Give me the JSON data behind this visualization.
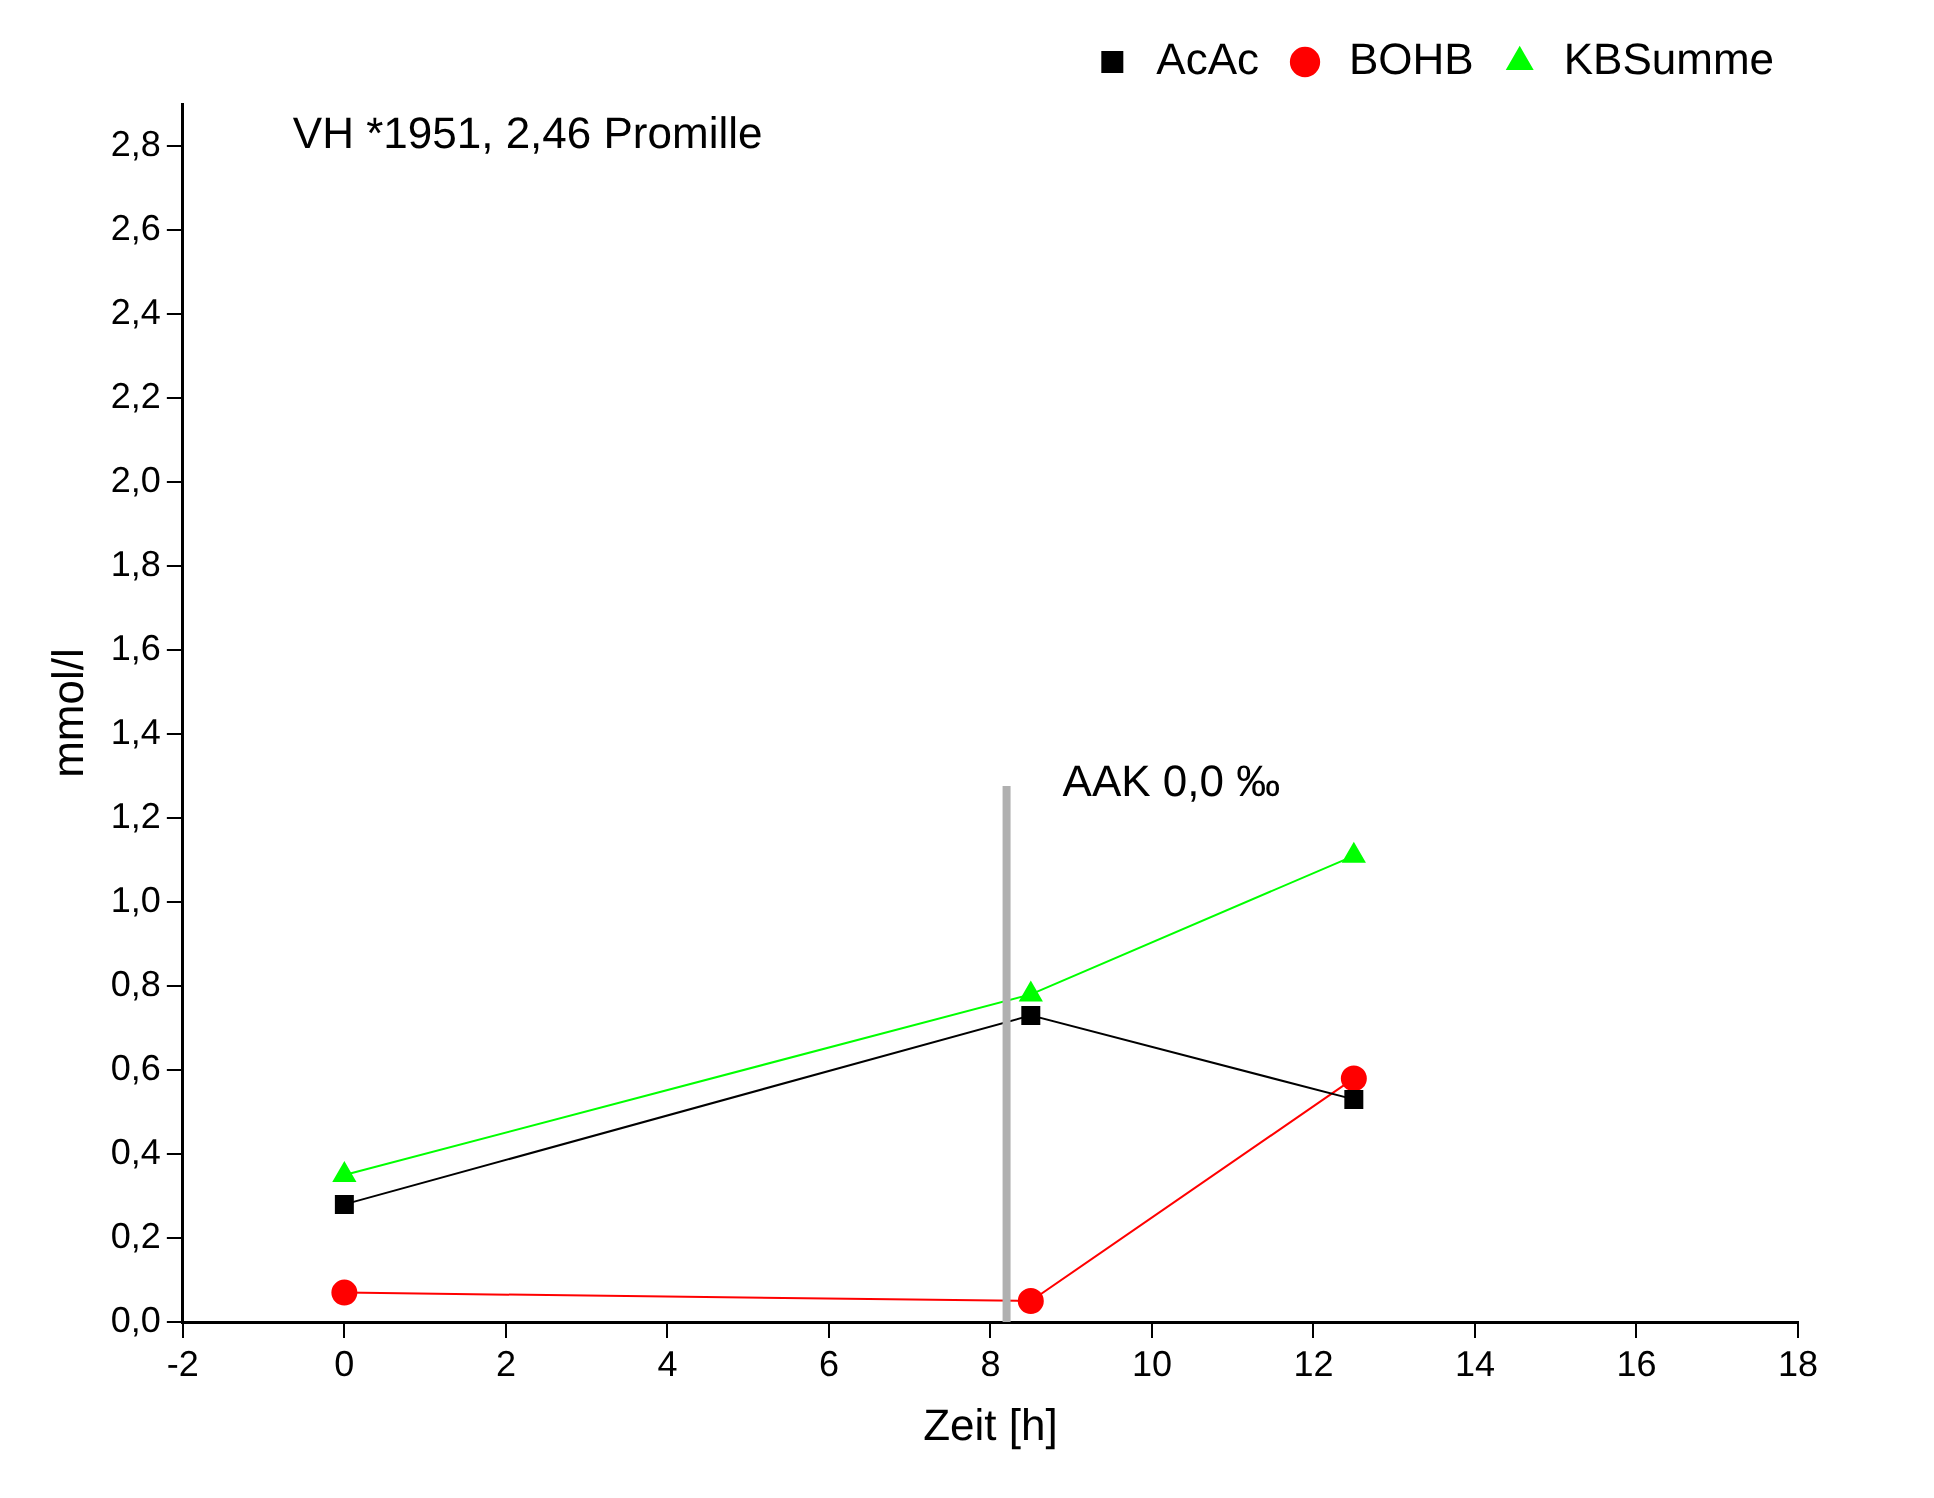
{
  "chart_data": {
    "type": "line",
    "xlabel": "Zeit [h]",
    "ylabel": "mmol/l",
    "annotations": [
      "VH *1951, 2,46 Promille"
    ],
    "series": [
      {
        "name": "AcAc",
        "color": "#000000",
        "marker": "square",
        "x": [
          0,
          8.5,
          12.5
        ],
        "values": [
          0.28,
          0.73,
          0.53
        ]
      },
      {
        "name": "BOHB",
        "color": "#ff0000",
        "marker": "circle",
        "x": [
          0,
          8.5,
          12.5
        ],
        "values": [
          0.07,
          0.05,
          0.58
        ]
      },
      {
        "name": "KBSumme",
        "color": "#00ff00",
        "marker": "triangle",
        "x": [
          0,
          8.5,
          12.5
        ],
        "values": [
          0.35,
          0.78,
          1.11
        ]
      }
    ],
    "xlim": [
      -2,
      18
    ],
    "xticks": [
      -2,
      0,
      2,
      4,
      6,
      8,
      10,
      12,
      14,
      16,
      18
    ],
    "ylim": [
      0,
      2.9
    ],
    "yticks": [
      {
        "value": 0,
        "label": "0,0"
      },
      {
        "value": 0.2,
        "label": "0,2"
      },
      {
        "value": 0.4,
        "label": "0,4"
      },
      {
        "value": 0.6,
        "label": "0,6"
      },
      {
        "value": 0.8,
        "label": "0,8"
      },
      {
        "value": 1,
        "label": "1,0"
      },
      {
        "value": 1.2,
        "label": "1,2"
      },
      {
        "value": 1.4,
        "label": "1,4"
      },
      {
        "value": 1.6,
        "label": "1,6"
      },
      {
        "value": 1.8,
        "label": "1,8"
      },
      {
        "value": 2,
        "label": "2,0"
      },
      {
        "value": 2.2,
        "label": "2,2"
      },
      {
        "value": 2.4,
        "label": "2,4"
      },
      {
        "value": 2.6,
        "label": "2,6"
      },
      {
        "value": 2.8,
        "label": "2,8"
      }
    ],
    "ref_lines": [
      {
        "axis": "x",
        "value": 8.2,
        "label": "AAK 0,0 ‰",
        "color": "#b0b0b0"
      }
    ],
    "grid": false,
    "legend": "top right"
  }
}
